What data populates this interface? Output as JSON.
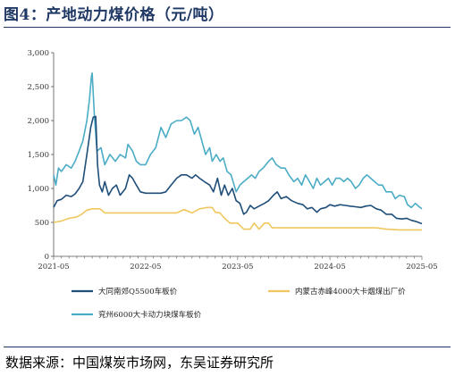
{
  "figure": {
    "title": "图4：产地动力煤价格（元/吨）",
    "source": "数据来源：中国煤炭市场网，东吴证券研究所"
  },
  "chart_data": {
    "type": "line",
    "title": "",
    "xlabel": "",
    "ylabel": "",
    "ylim": [
      0,
      3000
    ],
    "yticks": [
      "0",
      "500",
      "1,000",
      "1,500",
      "2,000",
      "2,500",
      "3,000"
    ],
    "xticks": [
      "2021-05",
      "2022-05",
      "2023-05",
      "2024-05",
      "2025-05"
    ],
    "xlim": [
      "2021-05",
      "2025-05"
    ],
    "grid": false,
    "legend": "bottom",
    "series": [
      {
        "name": "大同南郊Q5500车板价",
        "color": "#1f4e79",
        "points": [
          [
            "2021-05-01",
            720
          ],
          [
            "2021-05-15",
            820
          ],
          [
            "2021-06-01",
            840
          ],
          [
            "2021-06-20",
            900
          ],
          [
            "2021-07-10",
            880
          ],
          [
            "2021-07-25",
            920
          ],
          [
            "2021-08-10",
            1000
          ],
          [
            "2021-08-25",
            1100
          ],
          [
            "2021-09-10",
            1500
          ],
          [
            "2021-09-25",
            1900
          ],
          [
            "2021-10-05",
            2050
          ],
          [
            "2021-10-15",
            2060
          ],
          [
            "2021-10-22",
            1350
          ],
          [
            "2021-10-30",
            1050
          ],
          [
            "2021-11-10",
            950
          ],
          [
            "2021-11-20",
            1100
          ],
          [
            "2021-12-05",
            900
          ],
          [
            "2021-12-20",
            1000
          ],
          [
            "2022-01-05",
            1050
          ],
          [
            "2022-01-20",
            900
          ],
          [
            "2022-02-10",
            1000
          ],
          [
            "2022-02-25",
            1200
          ],
          [
            "2022-03-10",
            1150
          ],
          [
            "2022-03-25",
            1050
          ],
          [
            "2022-04-10",
            950
          ],
          [
            "2022-05-01",
            930
          ],
          [
            "2022-06-01",
            930
          ],
          [
            "2022-07-01",
            930
          ],
          [
            "2022-07-20",
            950
          ],
          [
            "2022-08-10",
            1050
          ],
          [
            "2022-09-01",
            1150
          ],
          [
            "2022-09-20",
            1200
          ],
          [
            "2022-10-10",
            1200
          ],
          [
            "2022-11-01",
            1150
          ],
          [
            "2022-11-15",
            1200
          ],
          [
            "2022-12-01",
            1150
          ],
          [
            "2022-12-20",
            1100
          ],
          [
            "2023-01-10",
            1050
          ],
          [
            "2023-01-25",
            950
          ],
          [
            "2023-02-10",
            1150
          ],
          [
            "2023-02-25",
            900
          ],
          [
            "2023-03-10",
            1050
          ],
          [
            "2023-03-25",
            900
          ],
          [
            "2023-04-10",
            1000
          ],
          [
            "2023-04-25",
            820
          ],
          [
            "2023-05-10",
            780
          ],
          [
            "2023-05-25",
            620
          ],
          [
            "2023-06-05",
            650
          ],
          [
            "2023-06-20",
            750
          ],
          [
            "2023-07-05",
            700
          ],
          [
            "2023-07-25",
            740
          ],
          [
            "2023-08-15",
            780
          ],
          [
            "2023-09-01",
            820
          ],
          [
            "2023-09-20",
            900
          ],
          [
            "2023-10-05",
            950
          ],
          [
            "2023-10-20",
            850
          ],
          [
            "2023-11-10",
            880
          ],
          [
            "2023-12-01",
            820
          ],
          [
            "2023-12-25",
            780
          ],
          [
            "2024-01-15",
            760
          ],
          [
            "2024-02-01",
            700
          ],
          [
            "2024-02-20",
            720
          ],
          [
            "2024-03-10",
            650
          ],
          [
            "2024-03-25",
            700
          ],
          [
            "2024-04-15",
            720
          ],
          [
            "2024-05-01",
            760
          ],
          [
            "2024-05-20",
            740
          ],
          [
            "2024-06-10",
            760
          ],
          [
            "2024-07-01",
            750
          ],
          [
            "2024-07-20",
            740
          ],
          [
            "2024-08-10",
            730
          ],
          [
            "2024-09-01",
            720
          ],
          [
            "2024-09-20",
            740
          ],
          [
            "2024-10-10",
            750
          ],
          [
            "2024-11-01",
            700
          ],
          [
            "2024-11-20",
            680
          ],
          [
            "2024-12-10",
            620
          ],
          [
            "2025-01-01",
            620
          ],
          [
            "2025-01-20",
            560
          ],
          [
            "2025-02-10",
            550
          ],
          [
            "2025-03-01",
            560
          ],
          [
            "2025-03-20",
            530
          ],
          [
            "2025-04-10",
            510
          ],
          [
            "2025-05-01",
            480
          ]
        ]
      },
      {
        "name": "内蒙古赤峰4000大卡烟煤出厂价",
        "color": "#f0c75e",
        "points": [
          [
            "2021-05-01",
            500
          ],
          [
            "2021-06-01",
            520
          ],
          [
            "2021-07-01",
            560
          ],
          [
            "2021-08-01",
            580
          ],
          [
            "2021-08-20",
            620
          ],
          [
            "2021-09-10",
            680
          ],
          [
            "2021-10-01",
            700
          ],
          [
            "2021-11-01",
            700
          ],
          [
            "2021-11-20",
            640
          ],
          [
            "2022-01-01",
            640
          ],
          [
            "2022-03-01",
            640
          ],
          [
            "2022-05-01",
            640
          ],
          [
            "2022-07-01",
            640
          ],
          [
            "2022-09-01",
            640
          ],
          [
            "2022-10-01",
            690
          ],
          [
            "2022-11-01",
            640
          ],
          [
            "2022-12-01",
            700
          ],
          [
            "2023-01-01",
            720
          ],
          [
            "2023-01-20",
            720
          ],
          [
            "2023-02-01",
            650
          ],
          [
            "2023-02-20",
            640
          ],
          [
            "2023-03-10",
            560
          ],
          [
            "2023-04-01",
            490
          ],
          [
            "2023-05-01",
            490
          ],
          [
            "2023-05-25",
            400
          ],
          [
            "2023-06-20",
            400
          ],
          [
            "2023-07-05",
            490
          ],
          [
            "2023-07-25",
            400
          ],
          [
            "2023-08-15",
            490
          ],
          [
            "2023-09-01",
            490
          ],
          [
            "2023-09-15",
            420
          ],
          [
            "2023-11-01",
            420
          ],
          [
            "2024-01-01",
            420
          ],
          [
            "2024-03-01",
            420
          ],
          [
            "2024-05-01",
            420
          ],
          [
            "2024-07-01",
            420
          ],
          [
            "2024-09-01",
            420
          ],
          [
            "2024-11-01",
            420
          ],
          [
            "2024-12-10",
            400
          ],
          [
            "2025-02-01",
            390
          ],
          [
            "2025-04-01",
            390
          ],
          [
            "2025-05-01",
            390
          ]
        ]
      },
      {
        "name": "兖州6000大卡动力块煤车板价",
        "color": "#4bacc6",
        "points": [
          [
            "2021-05-01",
            1200
          ],
          [
            "2021-05-10",
            1050
          ],
          [
            "2021-05-20",
            1300
          ],
          [
            "2021-06-01",
            1250
          ],
          [
            "2021-06-20",
            1350
          ],
          [
            "2021-07-10",
            1300
          ],
          [
            "2021-07-25",
            1400
          ],
          [
            "2021-08-10",
            1550
          ],
          [
            "2021-08-25",
            1700
          ],
          [
            "2021-09-10",
            2000
          ],
          [
            "2021-09-20",
            2300
          ],
          [
            "2021-09-28",
            2650
          ],
          [
            "2021-10-01",
            2700
          ],
          [
            "2021-10-10",
            2050
          ],
          [
            "2021-10-20",
            1550
          ],
          [
            "2021-11-05",
            1600
          ],
          [
            "2021-11-20",
            1350
          ],
          [
            "2021-12-10",
            1500
          ],
          [
            "2022-01-01",
            1400
          ],
          [
            "2022-01-20",
            1500
          ],
          [
            "2022-02-10",
            1450
          ],
          [
            "2022-02-20",
            1650
          ],
          [
            "2022-03-10",
            1550
          ],
          [
            "2022-03-25",
            1400
          ],
          [
            "2022-04-10",
            1350
          ],
          [
            "2022-05-01",
            1350
          ],
          [
            "2022-05-20",
            1500
          ],
          [
            "2022-06-10",
            1600
          ],
          [
            "2022-07-01",
            1900
          ],
          [
            "2022-07-20",
            1750
          ],
          [
            "2022-08-10",
            1950
          ],
          [
            "2022-09-01",
            2000
          ],
          [
            "2022-09-20",
            2000
          ],
          [
            "2022-10-10",
            2050
          ],
          [
            "2022-10-25",
            2000
          ],
          [
            "2022-11-10",
            1800
          ],
          [
            "2022-11-25",
            1900
          ],
          [
            "2022-12-10",
            1700
          ],
          [
            "2022-12-25",
            1500
          ],
          [
            "2023-01-10",
            1600
          ],
          [
            "2023-01-20",
            1400
          ],
          [
            "2023-02-05",
            1500
          ],
          [
            "2023-02-20",
            1400
          ],
          [
            "2023-03-05",
            1450
          ],
          [
            "2023-03-20",
            1250
          ],
          [
            "2023-04-05",
            1200
          ],
          [
            "2023-04-25",
            950
          ],
          [
            "2023-05-10",
            1050
          ],
          [
            "2023-05-25",
            1100
          ],
          [
            "2023-06-10",
            1150
          ],
          [
            "2023-06-25",
            1200
          ],
          [
            "2023-07-10",
            1150
          ],
          [
            "2023-07-25",
            1250
          ],
          [
            "2023-08-10",
            1300
          ],
          [
            "2023-09-01",
            1400
          ],
          [
            "2023-09-15",
            1450
          ],
          [
            "2023-10-01",
            1350
          ],
          [
            "2023-10-20",
            1300
          ],
          [
            "2023-11-05",
            1300
          ],
          [
            "2023-11-20",
            1200
          ],
          [
            "2023-12-10",
            1100
          ],
          [
            "2023-12-25",
            1150
          ],
          [
            "2024-01-10",
            1050
          ],
          [
            "2024-01-25",
            1200
          ],
          [
            "2024-02-10",
            1100
          ],
          [
            "2024-02-25",
            1000
          ],
          [
            "2024-03-10",
            1150
          ],
          [
            "2024-03-25",
            1050
          ],
          [
            "2024-04-10",
            1100
          ],
          [
            "2024-04-25",
            1150
          ],
          [
            "2024-05-10",
            1050
          ],
          [
            "2024-05-25",
            1150
          ],
          [
            "2024-06-10",
            1150
          ],
          [
            "2024-06-25",
            1100
          ],
          [
            "2024-07-10",
            1150
          ],
          [
            "2024-07-25",
            1100
          ],
          [
            "2024-08-10",
            1000
          ],
          [
            "2024-08-25",
            1050
          ],
          [
            "2024-09-10",
            1150
          ],
          [
            "2024-09-25",
            1200
          ],
          [
            "2024-10-10",
            1150
          ],
          [
            "2024-10-25",
            1100
          ],
          [
            "2024-11-10",
            1050
          ],
          [
            "2024-11-25",
            1050
          ],
          [
            "2024-12-10",
            950
          ],
          [
            "2025-01-01",
            950
          ],
          [
            "2025-01-15",
            850
          ],
          [
            "2025-02-01",
            900
          ],
          [
            "2025-02-20",
            880
          ],
          [
            "2025-03-05",
            760
          ],
          [
            "2025-03-20",
            720
          ],
          [
            "2025-04-05",
            780
          ],
          [
            "2025-04-20",
            730
          ],
          [
            "2025-05-01",
            700
          ]
        ]
      }
    ]
  }
}
